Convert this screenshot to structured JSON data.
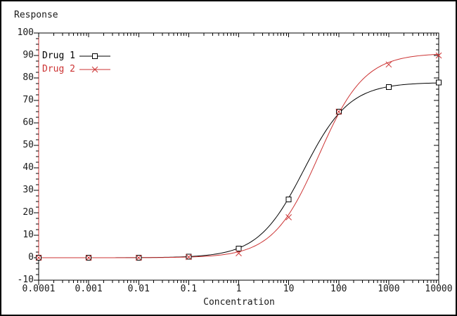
{
  "frame": {
    "bg": "#ffffff",
    "border_color": "#000000"
  },
  "chart_data": {
    "type": "line",
    "title": "Response",
    "xlabel": "Concentration",
    "x_scale": "log",
    "xlim": [
      0.0001,
      10000
    ],
    "ylim": [
      -10,
      100
    ],
    "y_major_step": 10,
    "y_minor_step": 2.5,
    "x_tick_labels": [
      "0.0001",
      "0.001",
      "0.01",
      "0.1",
      "1",
      "10",
      "100",
      "1000",
      "10000"
    ],
    "y_tick_labels": [
      "-10",
      "0",
      "10",
      "20",
      "30",
      "40",
      "50",
      "60",
      "70",
      "80",
      "90",
      "100"
    ],
    "grid": false,
    "legend_position": "upper-left",
    "axis_color": "#000000",
    "left_spine_overlay": {
      "color": "#cc3333",
      "y_from": 0,
      "y_to": 100
    },
    "series": [
      {
        "name": "Drug 1",
        "color": "#000000",
        "marker": "open-square",
        "x": [
          0.0001,
          0.001,
          0.01,
          0.1,
          1,
          10,
          100,
          1000,
          10000
        ],
        "y": [
          0,
          0,
          0,
          0.5,
          4,
          26,
          65,
          76,
          78
        ],
        "fit_curve": {
          "model": "4PL",
          "baseline": 0,
          "emax": 78,
          "ec50": 20,
          "hill": 0.95
        }
      },
      {
        "name": "Drug 2",
        "color": "#cc3333",
        "marker": "x-cross",
        "x": [
          0.0001,
          0.001,
          0.01,
          0.1,
          1,
          10,
          100,
          1000,
          10000
        ],
        "y": [
          0,
          0,
          0,
          0.3,
          2,
          18,
          65,
          86,
          90
        ],
        "fit_curve": {
          "model": "4PL",
          "baseline": 0,
          "emax": 91,
          "ec50": 40,
          "hill": 0.95
        }
      }
    ]
  }
}
